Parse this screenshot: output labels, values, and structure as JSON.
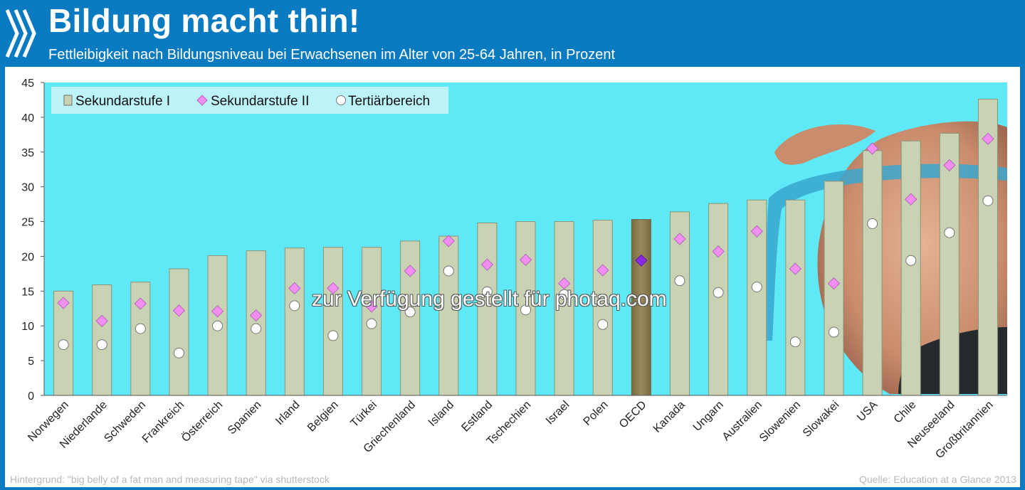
{
  "title": "Bildung macht thin!",
  "subtitle": "Fettleibigkeit nach Bildungsniveau bei Erwachsenen im Alter von 25-64 Jahren, in Prozent",
  "footer_left": "Hintergrund: \"big belly of a fat man and measuring tape\"  via shutterstock",
  "footer_right": "Quelle: Education at a Glance  2013",
  "watermark": "zur Verfügung gestellt für photaq.com",
  "colors": {
    "header": "#0a7bc0",
    "plot_background": "#5fe9f6",
    "bar_fill": "#c9d2b2",
    "bar_highlight": "#8a7c52",
    "diamond": "#f08ff0",
    "diamond_highlight": "#8a2be2",
    "circle": "#ffffff"
  },
  "chart_data": {
    "type": "bar",
    "title": "",
    "xlabel": "",
    "ylabel": "",
    "ylim": [
      0,
      45
    ],
    "yticks": [
      0,
      5,
      10,
      15,
      20,
      25,
      30,
      35,
      40,
      45
    ],
    "grid": false,
    "legend_position": "top-left",
    "highlight_category": "OECD",
    "categories": [
      "Norwegen",
      "Niederlande",
      "Schweden",
      "Frankreich",
      "Österreich",
      "Spanien",
      "Irland",
      "Belgien",
      "Türkei",
      "Griechenland",
      "Island",
      "Estland",
      "Tschechien",
      "Israel",
      "Polen",
      "OECD",
      "Kanada",
      "Ungarn",
      "Australien",
      "Slowenien",
      "Slowakei",
      "USA",
      "Chile",
      "Neuseeland",
      "Großbritannien"
    ],
    "series": [
      {
        "name": "Sekundarstufe I",
        "marker": "bar",
        "values": [
          15.0,
          15.9,
          16.3,
          18.2,
          20.1,
          20.8,
          21.2,
          21.3,
          21.3,
          22.2,
          22.9,
          24.8,
          25.0,
          25.0,
          25.2,
          25.3,
          26.4,
          27.6,
          28.1,
          28.1,
          30.8,
          35.2,
          36.6,
          37.7,
          42.6
        ]
      },
      {
        "name": "Sekundarstufe II",
        "marker": "diamond",
        "values": [
          13.3,
          10.7,
          13.2,
          12.2,
          12.1,
          11.5,
          15.4,
          15.4,
          12.8,
          17.9,
          22.2,
          18.8,
          19.5,
          16.1,
          18.0,
          19.4,
          22.5,
          20.7,
          23.6,
          18.2,
          16.1,
          35.5,
          28.2,
          33.1,
          36.9
        ]
      },
      {
        "name": "Tertiärbereich",
        "marker": "circle",
        "values": [
          7.3,
          7.3,
          9.6,
          6.1,
          10.0,
          9.6,
          12.9,
          8.6,
          10.3,
          12.0,
          17.9,
          14.9,
          12.3,
          14.5,
          10.2,
          14.0,
          16.5,
          14.8,
          15.6,
          7.7,
          9.1,
          24.7,
          19.4,
          23.4,
          28.0
        ]
      }
    ]
  }
}
